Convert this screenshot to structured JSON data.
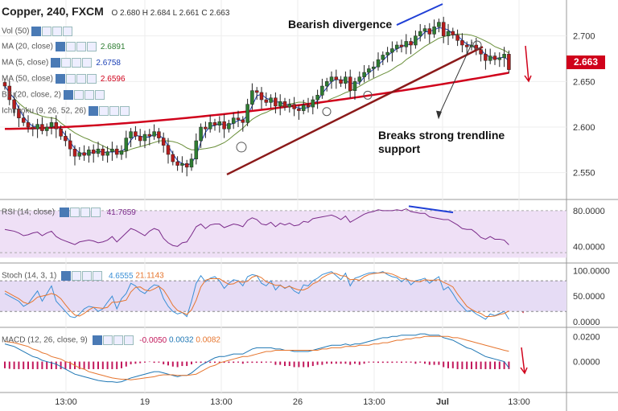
{
  "header": {
    "title": "Copper, 240, FXCM",
    "ohlc": "O 2.680 H 2.684 L 2.661 C 2.663"
  },
  "legends": [
    {
      "label": "Vol (50)",
      "value": "",
      "color": "#888"
    },
    {
      "label": "MA (20, close)",
      "value": "2.6891",
      "color": "#2e7d32"
    },
    {
      "label": "MA (5, close)",
      "value": "2.6758",
      "color": "#1a3fb5"
    },
    {
      "label": "MA (50, close)",
      "value": "2.6596",
      "color": "#d0021b"
    },
    {
      "label": "BB (20, close, 2)",
      "value": "",
      "color": "#888"
    },
    {
      "label": "Ichimoku (9, 26, 52, 26)",
      "value": "",
      "color": "#888"
    }
  ],
  "rsi_legend": {
    "label": "RSI (14, close)",
    "value": "41.7659",
    "color": "#7b2b8a"
  },
  "stoch_legend": {
    "label": "Stoch (14, 3, 1)",
    "value1": "4.6555",
    "value2": "21.1143",
    "color1": "#3a8fd6",
    "color2": "#e6752e"
  },
  "macd_legend": {
    "label": "MACD (12, 26, close, 9)",
    "value1": "-0.0050",
    "value2": "0.0032",
    "value3": "0.0082",
    "color1": "#c2185b",
    "color2": "#1f77b4",
    "color3": "#e6752e"
  },
  "annotations": {
    "bearish": "Bearish divergence",
    "breaks_line1": "Breaks strong trendline",
    "breaks_line2": "support"
  },
  "price_tag": "2.663",
  "colors": {
    "bull": "#2e7d32",
    "bear": "#b71c1c",
    "ma50": "#d0021b",
    "ma20": "#6a8f3a",
    "ma5": "#1a3fb5",
    "trend": "#8b1a1a",
    "divergence": "#1f3fd6",
    "arrow": "#d0021b"
  },
  "chart_data": [
    {
      "type": "candlestick",
      "title": "Copper, 240, FXCM",
      "x_ticks": [
        "13:00",
        "19",
        "13:00",
        "26",
        "13:00",
        "Jul",
        "13:00"
      ],
      "y_ticks": [
        "2.550",
        "2.600",
        "2.650",
        "2.700"
      ],
      "ylim": [
        2.525,
        2.735
      ],
      "close": [
        2.645,
        2.63,
        2.62,
        2.61,
        2.605,
        2.6,
        2.598,
        2.603,
        2.596,
        2.6,
        2.605,
        2.598,
        2.59,
        2.585,
        2.576,
        2.568,
        2.572,
        2.569,
        2.575,
        2.571,
        2.576,
        2.569,
        2.573,
        2.576,
        2.57,
        2.574,
        2.588,
        2.595,
        2.59,
        2.585,
        2.592,
        2.59,
        2.595,
        2.588,
        2.58,
        2.57,
        2.562,
        2.558,
        2.56,
        2.556,
        2.565,
        2.585,
        2.6,
        2.598,
        2.605,
        2.602,
        2.606,
        2.598,
        2.604,
        2.61,
        2.608,
        2.605,
        2.625,
        2.64,
        2.638,
        2.63,
        2.627,
        2.632,
        2.623,
        2.628,
        2.622,
        2.625,
        2.62,
        2.618,
        2.624,
        2.622,
        2.63,
        2.635,
        2.645,
        2.65,
        2.655,
        2.652,
        2.648,
        2.655,
        2.64,
        2.65,
        2.655,
        2.66,
        2.664,
        2.666,
        2.674,
        2.679,
        2.682,
        2.686,
        2.69,
        2.688,
        2.694,
        2.69,
        2.7,
        2.705,
        2.708,
        2.702,
        2.71,
        2.715,
        2.7,
        2.705,
        2.701,
        2.695,
        2.69,
        2.688,
        2.69,
        2.685,
        2.68,
        2.673,
        2.678,
        2.674,
        2.676,
        2.68,
        2.663
      ],
      "ma50_last": 2.6596,
      "ma20_last": 2.6891,
      "ma5_last": 2.6758
    },
    {
      "type": "line",
      "title": "RSI (14, close)",
      "y_ticks": [
        "40.0000",
        "80.0000"
      ],
      "ylim": [
        25,
        88
      ],
      "values": [
        59,
        58,
        57,
        55,
        52,
        53,
        55,
        56,
        52,
        55,
        57,
        51,
        48,
        46,
        44,
        42,
        45,
        46,
        47,
        46,
        44,
        45,
        47,
        51,
        45,
        50,
        55,
        60,
        58,
        55,
        52,
        57,
        60,
        58,
        49,
        44,
        41,
        40,
        44,
        45,
        53,
        62,
        65,
        60,
        64,
        65,
        65,
        61,
        63,
        65,
        64,
        62,
        69,
        72,
        70,
        65,
        64,
        67,
        62,
        66,
        64,
        66,
        63,
        64,
        68,
        67,
        71,
        72,
        73,
        74,
        75,
        73,
        70,
        74,
        67,
        70,
        73,
        76,
        78,
        79,
        81,
        80,
        80,
        80,
        81,
        80,
        82,
        79,
        78,
        77,
        77,
        73,
        72,
        71,
        70,
        70,
        67,
        64,
        60,
        59,
        59,
        55,
        50,
        48,
        51,
        48,
        48,
        47,
        41.8
      ]
    },
    {
      "type": "line",
      "title": "Stoch (14, 3, 1)",
      "y_ticks": [
        "0.0000",
        "50.0000",
        "100.0000"
      ],
      "ylim": [
        -8,
        110
      ],
      "series": [
        {
          "name": "%K",
          "values": [
            55,
            50,
            45,
            40,
            30,
            35,
            48,
            60,
            40,
            55,
            70,
            40,
            30,
            20,
            10,
            8,
            15,
            25,
            30,
            28,
            20,
            25,
            38,
            50,
            25,
            45,
            55,
            75,
            70,
            60,
            55,
            65,
            72,
            70,
            45,
            30,
            20,
            15,
            18,
            10,
            40,
            75,
            90,
            78,
            85,
            88,
            80,
            65,
            75,
            82,
            80,
            70,
            88,
            92,
            90,
            75,
            70,
            80,
            62,
            72,
            65,
            70,
            60,
            55,
            72,
            70,
            80,
            85,
            92,
            95,
            98,
            90,
            82,
            95,
            70,
            85,
            88,
            92,
            95,
            96,
            95,
            98,
            92,
            88,
            86,
            78,
            85,
            72,
            80,
            82,
            85,
            75,
            82,
            88,
            62,
            68,
            55,
            40,
            30,
            20,
            22,
            15,
            10,
            4.6,
            15,
            12,
            16,
            20,
            4.6
          ]
        },
        {
          "name": "%D",
          "values": [
            60,
            55,
            50,
            45,
            38,
            35,
            40,
            48,
            50,
            52,
            55,
            52,
            45,
            33,
            22,
            13,
            11,
            16,
            23,
            28,
            27,
            26,
            28,
            38,
            38,
            40,
            42,
            58,
            67,
            68,
            62,
            60,
            64,
            69,
            62,
            48,
            32,
            22,
            18,
            14,
            23,
            42,
            68,
            81,
            84,
            84,
            84,
            78,
            73,
            74,
            79,
            77,
            79,
            87,
            90,
            86,
            78,
            75,
            71,
            71,
            66,
            69,
            65,
            62,
            62,
            66,
            74,
            78,
            86,
            91,
            95,
            94,
            90,
            89,
            82,
            83,
            81,
            88,
            92,
            94,
            95,
            96,
            95,
            93,
            89,
            84,
            83,
            80,
            79,
            78,
            82,
            81,
            81,
            82,
            77,
            73,
            68,
            54,
            42,
            30,
            24,
            19,
            16,
            10,
            10,
            11,
            14,
            16,
            21.1
          ]
        }
      ]
    },
    {
      "type": "line",
      "title": "MACD (12, 26, close, 9)",
      "y_ticks": [
        "0.0000",
        "0.0200"
      ],
      "ylim": [
        -0.022,
        0.024
      ],
      "series": [
        {
          "name": "MACD",
          "values": [
            0.014,
            0.013,
            0.012,
            0.01,
            0.008,
            0.006,
            0.004,
            0.003,
            0.001,
            0.0,
            -0.001,
            -0.002,
            -0.004,
            -0.006,
            -0.008,
            -0.01,
            -0.011,
            -0.012,
            -0.013,
            -0.014,
            -0.015,
            -0.0155,
            -0.016,
            -0.016,
            -0.0165,
            -0.016,
            -0.0145,
            -0.013,
            -0.012,
            -0.011,
            -0.01,
            -0.009,
            -0.008,
            -0.008,
            -0.009,
            -0.01,
            -0.011,
            -0.012,
            -0.011,
            -0.011,
            -0.009,
            -0.006,
            -0.003,
            -0.001,
            0.001,
            0.003,
            0.004,
            0.004,
            0.005,
            0.006,
            0.006,
            0.006,
            0.008,
            0.01,
            0.011,
            0.011,
            0.011,
            0.011,
            0.01,
            0.01,
            0.009,
            0.009,
            0.008,
            0.008,
            0.008,
            0.008,
            0.009,
            0.01,
            0.011,
            0.012,
            0.013,
            0.013,
            0.013,
            0.014,
            0.013,
            0.014,
            0.014,
            0.015,
            0.016,
            0.017,
            0.018,
            0.019,
            0.019,
            0.02,
            0.02,
            0.021,
            0.021,
            0.021,
            0.021,
            0.022,
            0.022,
            0.021,
            0.021,
            0.021,
            0.019,
            0.018,
            0.017,
            0.015,
            0.013,
            0.011,
            0.01,
            0.008,
            0.006,
            0.004,
            0.003,
            0.002,
            0.001,
            0.0,
            -0.005
          ]
        },
        {
          "name": "Signal",
          "values": [
            0.016,
            0.0155,
            0.015,
            0.014,
            0.013,
            0.012,
            0.01,
            0.009,
            0.007,
            0.006,
            0.004,
            0.003,
            0.002,
            0.0,
            -0.001,
            -0.003,
            -0.005,
            -0.006,
            -0.008,
            -0.009,
            -0.01,
            -0.011,
            -0.012,
            -0.013,
            -0.0135,
            -0.014,
            -0.014,
            -0.0145,
            -0.014,
            -0.0135,
            -0.013,
            -0.0125,
            -0.012,
            -0.011,
            -0.0105,
            -0.0105,
            -0.0105,
            -0.011,
            -0.011,
            -0.011,
            -0.0105,
            -0.01,
            -0.008,
            -0.006,
            -0.004,
            -0.003,
            -0.001,
            0.0,
            0.001,
            0.002,
            0.003,
            0.004,
            0.004,
            0.005,
            0.006,
            0.007,
            0.008,
            0.008,
            0.009,
            0.009,
            0.009,
            0.009,
            0.009,
            0.009,
            0.009,
            0.009,
            0.009,
            0.009,
            0.01,
            0.01,
            0.011,
            0.011,
            0.011,
            0.012,
            0.012,
            0.012,
            0.013,
            0.013,
            0.013,
            0.014,
            0.014,
            0.015,
            0.015,
            0.016,
            0.017,
            0.017,
            0.018,
            0.018,
            0.019,
            0.019,
            0.02,
            0.02,
            0.02,
            0.02,
            0.02,
            0.02,
            0.019,
            0.019,
            0.018,
            0.017,
            0.016,
            0.015,
            0.014,
            0.013,
            0.012,
            0.011,
            0.01,
            0.009,
            0.0082
          ]
        }
      ]
    }
  ]
}
